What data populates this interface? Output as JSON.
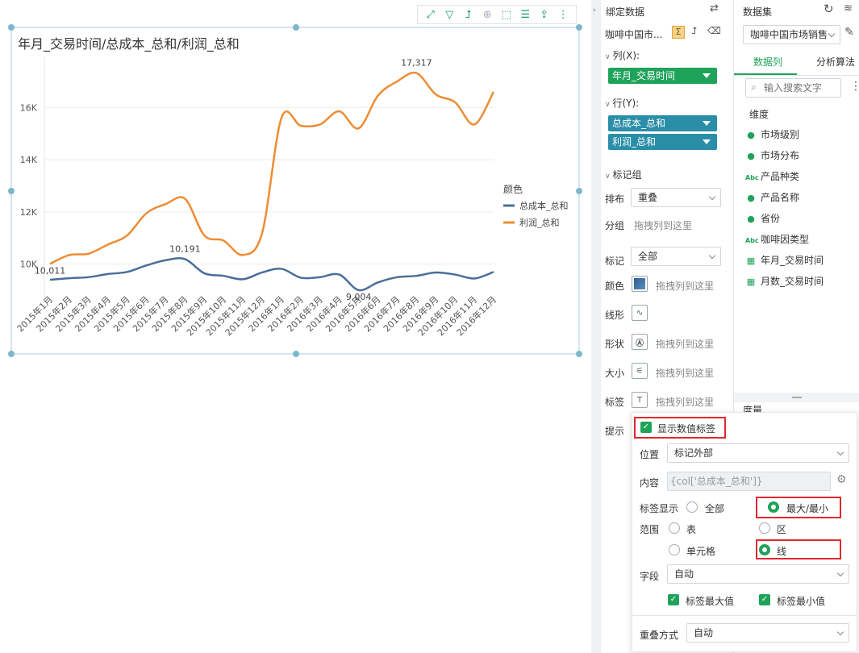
{
  "chart_data": {
    "type": "line",
    "categories": [
      "2015年1月",
      "2015年2月",
      "2015年3月",
      "2015年4月",
      "2015年5月",
      "2015年6月",
      "2015年7月",
      "2015年8月",
      "2015年9月",
      "2015年10月",
      "2015年11月",
      "2015年12月",
      "2016年1月",
      "2016年2月",
      "2016年3月",
      "2016年4月",
      "2016年5月",
      "2016年6月",
      "2016年7月",
      "2016年8月",
      "2016年9月",
      "2016年10月",
      "2016年11月",
      "2016年12月"
    ],
    "series": [
      {
        "name": "总成本_总和",
        "color": "#4a6e9a",
        "values": [
          9400,
          9460,
          9500,
          9620,
          9700,
          9950,
          10150,
          10191,
          9650,
          9550,
          9420,
          9680,
          9820,
          9480,
          9500,
          9600,
          9004,
          9300,
          9500,
          9550,
          9680,
          9600,
          9450,
          9700
        ]
      },
      {
        "name": "利润_总和",
        "color": "#ee8c33",
        "values": [
          10011,
          10350,
          10400,
          10750,
          11100,
          11950,
          12300,
          12500,
          11100,
          10900,
          10350,
          11200,
          15600,
          15300,
          15350,
          15850,
          15200,
          16450,
          17000,
          17317,
          16500,
          16200,
          15350,
          16600
        ]
      }
    ],
    "ytick_labels": [
      "10K",
      "12K",
      "14K",
      "16K"
    ],
    "ylim": [
      9000,
      17800
    ],
    "data_labels": {
      "cost_max": "10,191",
      "cost_min": "9,004",
      "profit_max": "17,317",
      "profit_min": "10,011"
    },
    "legend_title": "颜色",
    "grid": true,
    "legend_position": "right",
    "title": "年月_交易时间/总成本_总和/利润_总和"
  },
  "mid": {
    "header": "绑定数据",
    "dataset": "咖啡中国市...",
    "col_label": "列(X):",
    "col_pill": "年月_交易时间",
    "row_label": "行(Y):",
    "row_pill_1": "总成本_总和",
    "row_pill_2": "利润_总和",
    "mark_group": "标记组",
    "layout_label": "排布",
    "layout_value": "重叠",
    "group_label": "分组",
    "drag_hint": "拖拽列到这里",
    "mark_label": "标记",
    "mark_value": "全部",
    "color_label": "颜色",
    "line_label": "线形",
    "shape_label": "形状",
    "size_label": "大小",
    "tag_label": "标签",
    "tip_label": "提示"
  },
  "right": {
    "header": "数据集",
    "dataset_value": "咖啡中国市场销售",
    "tab_fields": "数据列",
    "tab_algo": "分析算法",
    "search_placeholder": "输入搜索文字",
    "dim_label": "维度",
    "fields": [
      {
        "name": "市场级别",
        "icon": "globe"
      },
      {
        "name": "市场分布",
        "icon": "globe"
      },
      {
        "name": "产品种类",
        "icon": "abc"
      },
      {
        "name": "产品名称",
        "icon": "globe"
      },
      {
        "name": "省份",
        "icon": "globe"
      },
      {
        "name": "咖啡因类型",
        "icon": "abc"
      },
      {
        "name": "年月_交易时间",
        "icon": "calendar"
      },
      {
        "name": "月数_交易时间",
        "icon": "calendar"
      }
    ],
    "measure_label": "度量"
  },
  "popup": {
    "show_label": "显示数值标签",
    "position_label": "位置",
    "position_value": "标记外部",
    "content_label": "内容",
    "content_value": "{col['总成本_总和']}",
    "display_label": "标签显示",
    "opt_all": "全部",
    "opt_maxmin": "最大/最小",
    "range_label": "范围",
    "opt_table": "表",
    "opt_region": "区",
    "opt_cell": "单元格",
    "opt_line": "线",
    "field_label": "字段",
    "field_value": "自动",
    "chk_max": "标签最大值",
    "chk_min": "标签最小值",
    "overlap_label": "重叠方式",
    "overlap_value": "自动"
  }
}
